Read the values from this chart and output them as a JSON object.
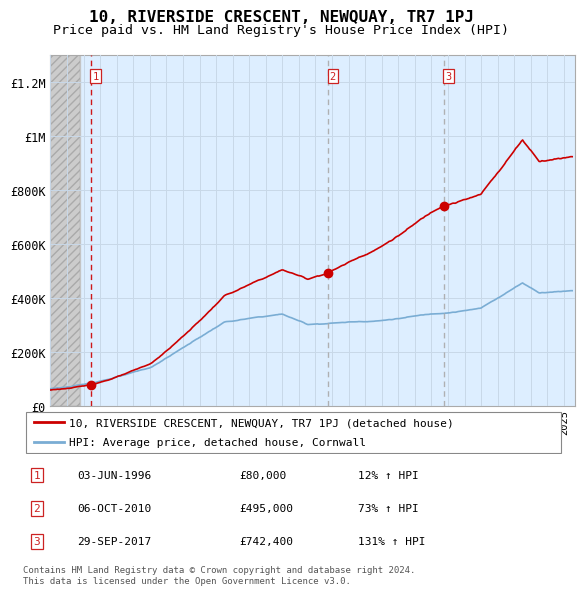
{
  "title": "10, RIVERSIDE CRESCENT, NEWQUAY, TR7 1PJ",
  "subtitle": "Price paid vs. HM Land Registry's House Price Index (HPI)",
  "ylim": [
    0,
    1300000
  ],
  "yticks": [
    0,
    200000,
    400000,
    600000,
    800000,
    1000000,
    1200000
  ],
  "ytick_labels": [
    "£0",
    "£200K",
    "£400K",
    "£600K",
    "£800K",
    "£1M",
    "£1.2M"
  ],
  "xlim_start": 1994.0,
  "xlim_end": 2025.7,
  "price_paid_color": "#cc0000",
  "hpi_color": "#7aadd4",
  "sale_marker_color": "#cc0000",
  "vline1_color": "#cc0000",
  "vline23_color": "#aaaaaa",
  "background_plot_color": "#ddeeff",
  "grid_color": "#c8d8e8",
  "hatch_color": "#c8c8c8",
  "sale_dates": [
    1996.42,
    2010.76,
    2017.74
  ],
  "sale_prices": [
    80000,
    495000,
    742400
  ],
  "sale_labels": [
    "1",
    "2",
    "3"
  ],
  "sale_annotations": [
    [
      "03-JUN-1996",
      "£80,000",
      "12% ↑ HPI"
    ],
    [
      "06-OCT-2010",
      "£495,000",
      "73% ↑ HPI"
    ],
    [
      "29-SEP-2017",
      "£742,400",
      "131% ↑ HPI"
    ]
  ],
  "legend_label_red": "10, RIVERSIDE CRESCENT, NEWQUAY, TR7 1PJ (detached house)",
  "legend_label_blue": "HPI: Average price, detached house, Cornwall",
  "footnote": "Contains HM Land Registry data © Crown copyright and database right 2024.\nThis data is licensed under the Open Government Licence v3.0."
}
